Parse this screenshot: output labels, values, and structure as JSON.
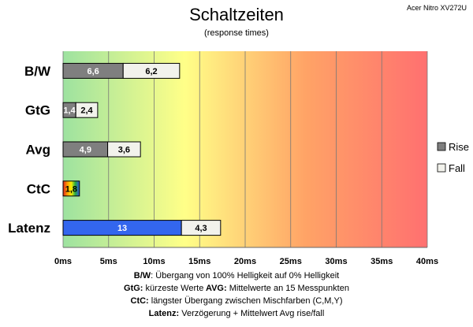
{
  "chart_data": {
    "type": "bar",
    "orientation": "horizontal",
    "stacked": true,
    "title": "Schaltzeiten",
    "subtitle": "(response times)",
    "model": "Acer Nitro XV272U",
    "categories": [
      "B/W",
      "GtG",
      "Avg",
      "CtC",
      "Latenz"
    ],
    "series": [
      {
        "name": "Rise",
        "values": [
          6.6,
          1.4,
          4.9,
          1.8,
          13
        ],
        "labels": [
          "6,6",
          "1,4",
          "4,9",
          "1,8",
          "13"
        ],
        "color": "#7f7f7f"
      },
      {
        "name": "Fall",
        "values": [
          6.2,
          2.4,
          3.6,
          null,
          4.3
        ],
        "labels": [
          "6,2",
          "2,4",
          "3,6",
          "",
          "4,3"
        ],
        "color": "#f2f2ec"
      }
    ],
    "special_colors": {
      "Latenz_rise": "#3366ee",
      "CtC": "rainbow"
    },
    "xlim": [
      0,
      40
    ],
    "xticks": [
      0,
      5,
      10,
      15,
      20,
      25,
      30,
      35,
      40
    ],
    "xtick_labels": [
      "0ms",
      "5ms",
      "10ms",
      "15ms",
      "20ms",
      "25ms",
      "30ms",
      "35ms",
      "40ms"
    ],
    "background_gradient": [
      "#9de2a0",
      "#ffff88",
      "#ffa366",
      "#ff7070"
    ],
    "grid": true,
    "legend_position": "right"
  },
  "footnotes": [
    [
      {
        "b": "B/W",
        "t": ":  Übergang von 100% Helligkeit auf 0% Helligkeit"
      }
    ],
    [
      {
        "b": "GtG:",
        "t": " kürzeste  Werte"
      },
      {
        "b": "AVG:",
        "t": " Mittelwerte  an 15 Messpunkten"
      }
    ],
    [
      {
        "b": "CtC:",
        "t": " längster Übergang  zwischen Mischfarben (C,M,Y)"
      }
    ],
    [
      {
        "b": "Latenz:",
        "t": " Verzögerung  + Mittelwert Avg rise/fall"
      }
    ]
  ]
}
